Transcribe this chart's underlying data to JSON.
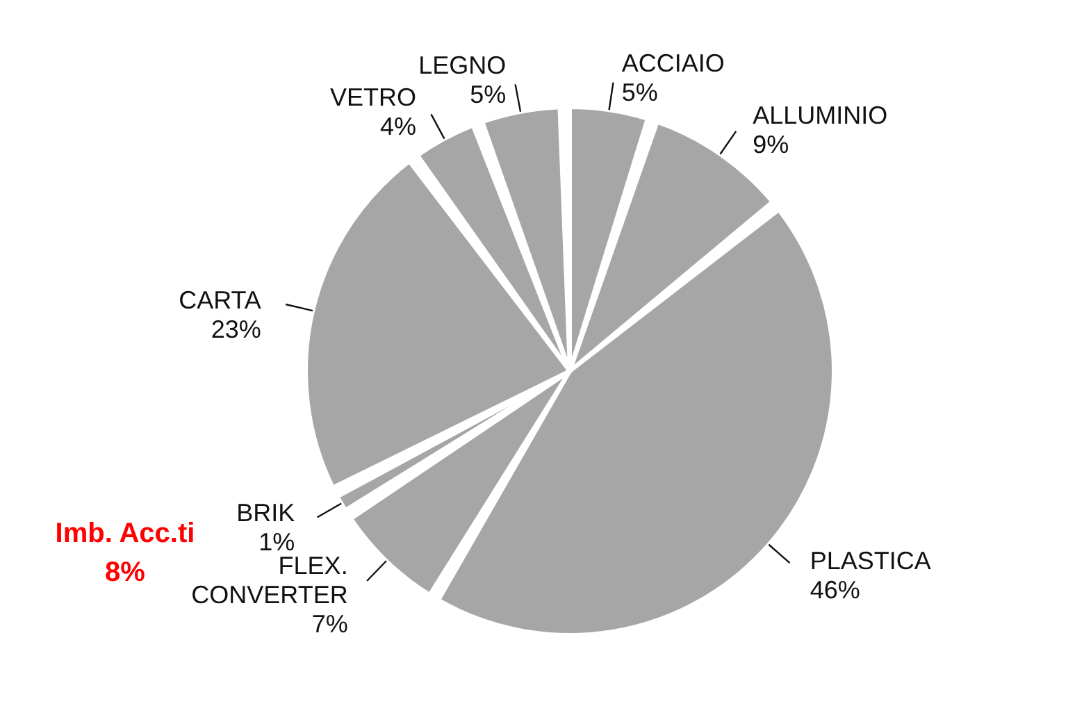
{
  "chart_data": {
    "type": "pie",
    "categories": [
      "ACCIAIO",
      "ALLUMINIO",
      "PLASTICA",
      "FLEX. CONVERTER",
      "BRIK",
      "CARTA",
      "VETRO",
      "LEGNO"
    ],
    "values": [
      5,
      9,
      46,
      7,
      1,
      23,
      4,
      5
    ],
    "value_labels": [
      "5%",
      "9%",
      "46%",
      "7%",
      "1%",
      "23%",
      "4%",
      "5%"
    ],
    "colors": [
      "#a6a6a6",
      "#a6a6a6",
      "#a6a6a6",
      "#a6a6a6",
      "#a6a6a6",
      "#a6a6a6",
      "#a6a6a6",
      "#a6a6a6"
    ],
    "annotations": [
      "Imb. Acc.ti",
      "8%"
    ]
  }
}
